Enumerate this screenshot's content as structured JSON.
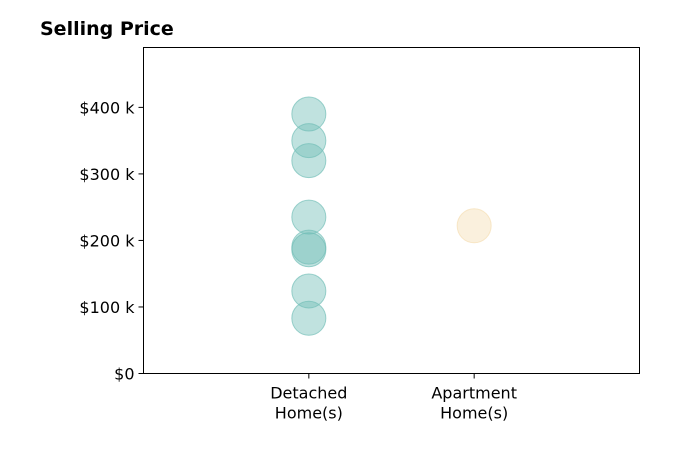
{
  "chart_data": {
    "type": "scatter",
    "title": "Selling Price",
    "xlabel": "",
    "ylabel": "",
    "categories": [
      [
        "Detached",
        "Home(s)"
      ],
      [
        "Apartment",
        "Home(s)"
      ]
    ],
    "xlim": [
      -1,
      2
    ],
    "ylim": [
      0,
      490000
    ],
    "yticks": [
      0,
      100000,
      200000,
      300000,
      400000
    ],
    "ytick_labels": [
      "$0",
      "$100 k",
      "$200 k",
      "$300 k",
      "$400 k"
    ],
    "grid": false,
    "series": [
      {
        "category_index": 0,
        "color": "#73bfb8",
        "values": [
          390000,
          350000,
          320000,
          235000,
          190000,
          186000,
          124000,
          83000
        ]
      },
      {
        "category_index": 1,
        "color": "#f5deb3",
        "values": [
          222000
        ]
      }
    ]
  }
}
